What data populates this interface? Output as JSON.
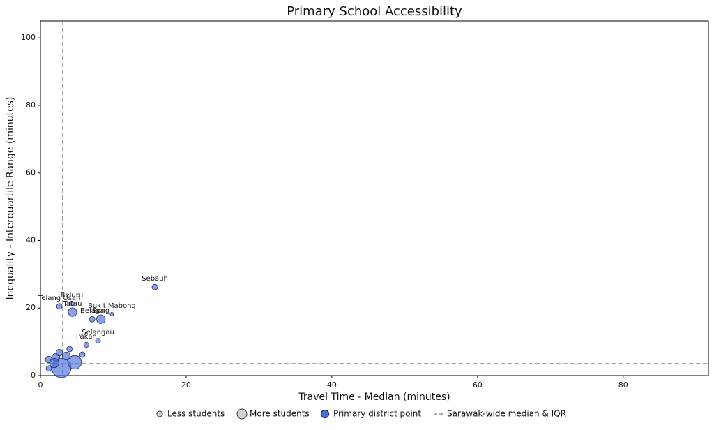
{
  "chart_data": {
    "type": "scatter",
    "title": "Primary School Accessibility",
    "x_label": "Travel Time - Median (minutes)",
    "y_label": "Inequality - Interquartile Range (minutes)",
    "xlim": [
      0,
      91.7
    ],
    "ylim": [
      0,
      105
    ],
    "xticks": [
      0,
      20,
      40,
      60,
      80
    ],
    "yticks": [
      0,
      20,
      40,
      60,
      80,
      100
    ],
    "grid": false,
    "color": "#4a6fdc",
    "edge_color": "#1f2a55",
    "median_x": 3.06,
    "median_y": 3.5,
    "legend_position": "bottom",
    "legend": [
      "Less students",
      "More students",
      "Primary district point",
      "Sarawak-wide median & IQR"
    ],
    "series": [
      {
        "name": "Primary district point",
        "color": "#4a6fdc",
        "x": [
          15.7,
          2.6,
          4.3,
          4.4,
          7.1,
          8.3,
          9.8,
          7.9,
          6.3,
          2.87,
          4.69,
          2.1,
          1.15,
          3.54,
          5.74,
          1.15,
          2.58,
          4.0,
          1.9
        ],
        "values": [
          26.2,
          20.5,
          21.3,
          18.8,
          16.7,
          16.7,
          18.2,
          10.3,
          9.1,
          2.27,
          3.93,
          5.4,
          2.1,
          5.8,
          6.2,
          4.75,
          6.8,
          7.85,
          3.7
        ],
        "sizes": [
          25,
          25,
          20,
          60,
          25,
          60,
          10,
          20,
          20,
          300,
          150,
          50,
          25,
          50,
          25,
          35,
          35,
          25,
          70
        ],
        "labels": [
          "Sebauh",
          "Telang Usan",
          "Beluru",
          "Tatau",
          "Belaga",
          "Song",
          "Bukit Mabong",
          "Selangau",
          "Pakan",
          null,
          null,
          null,
          null,
          null,
          null,
          null,
          null,
          null,
          null
        ]
      }
    ]
  }
}
